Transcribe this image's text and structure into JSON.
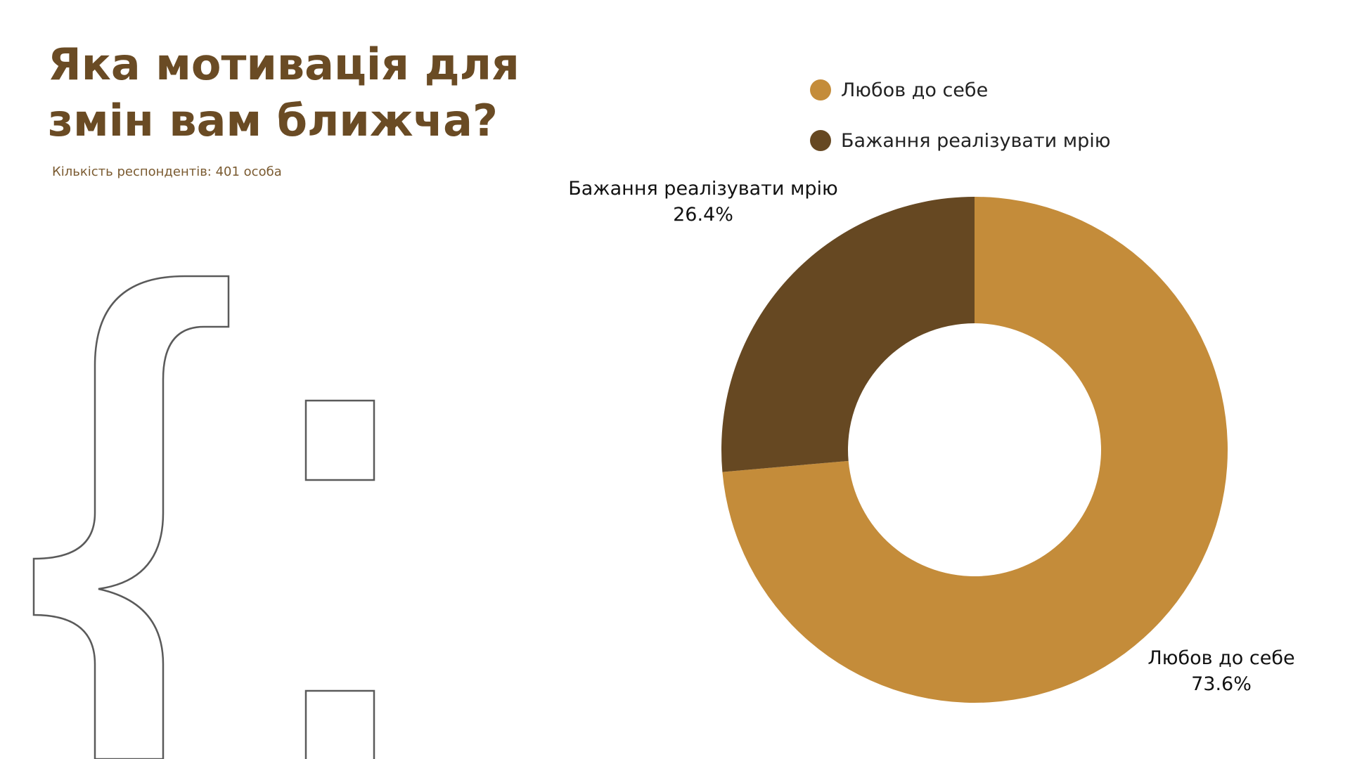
{
  "page": {
    "title": "Яка мотивація для змін вам ближча?",
    "subtitle": "Кількість респондентів: 401 особа"
  },
  "colors": {
    "title": "#6a4b24",
    "decoration_stroke": "#5a5a5a"
  },
  "chart_data": {
    "type": "pie",
    "donut": true,
    "series": [
      {
        "name": "Любов до себе",
        "value": 73.6,
        "value_label": "73.6%",
        "color": "#c48c3a"
      },
      {
        "name": "Бажання реалізувати мрію",
        "value": 26.4,
        "value_label": "26.4%",
        "color": "#664822"
      }
    ],
    "legend": {
      "placement": "top",
      "entries": [
        "Любов до себе",
        "Бажання реалізувати мрію"
      ]
    }
  }
}
